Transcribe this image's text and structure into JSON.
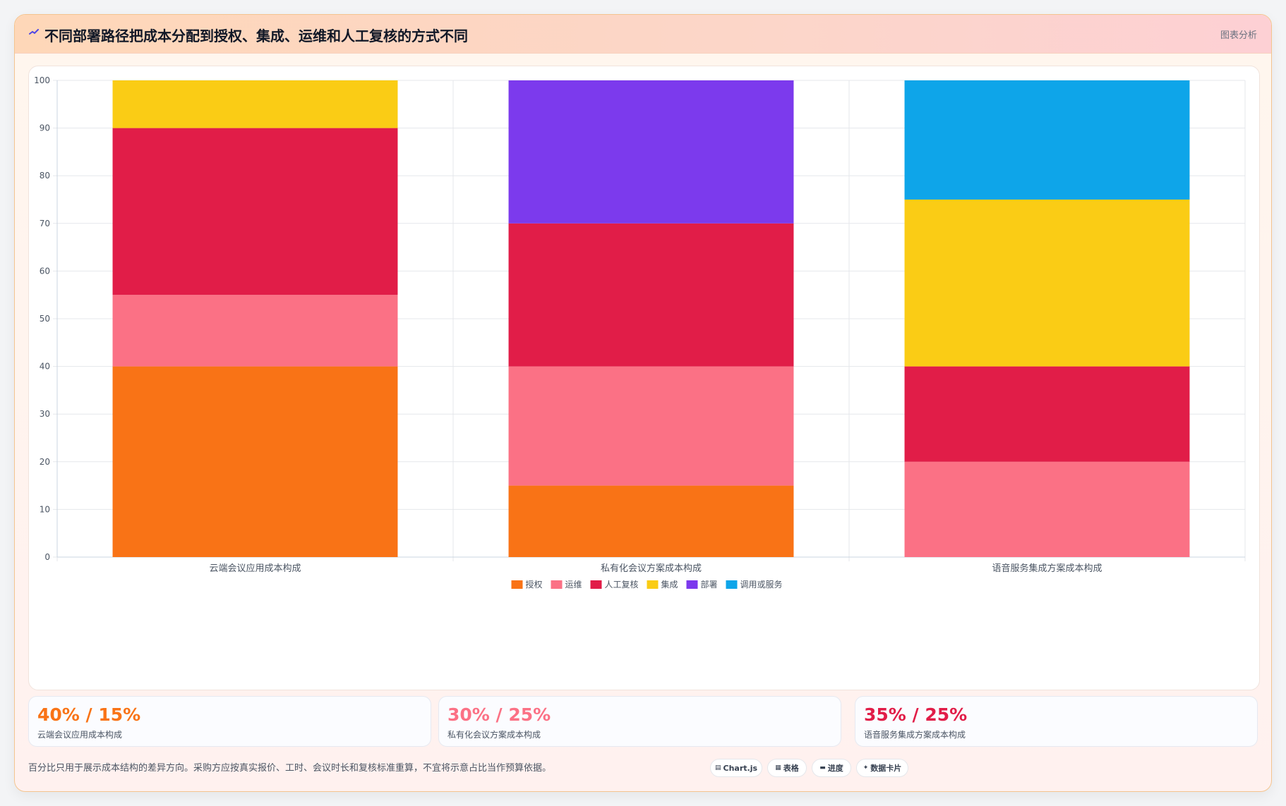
{
  "header": {
    "title": "不同部署路径把成本分配到授权、集成、运维和人工复核的方式不同",
    "action_label": "图表分析"
  },
  "chart_data": {
    "type": "bar",
    "stacked": true,
    "categories": [
      "云端会议应用成本构成",
      "私有化会议方案成本构成",
      "语音服务集成方案成本构成"
    ],
    "series": [
      {
        "name": "授权",
        "color": "#f97316",
        "values": [
          40,
          15,
          0
        ]
      },
      {
        "name": "运维",
        "color": "#fb7185",
        "values": [
          15,
          25,
          20
        ]
      },
      {
        "name": "人工复核",
        "color": "#e11d48",
        "values": [
          35,
          30,
          20
        ]
      },
      {
        "name": "集成",
        "color": "#facc15",
        "values": [
          10,
          0,
          35
        ]
      },
      {
        "name": "部署",
        "color": "#7c3aed",
        "values": [
          0,
          30,
          0
        ]
      },
      {
        "name": "调用或服务",
        "color": "#0ea5e9",
        "values": [
          0,
          0,
          25
        ]
      }
    ],
    "ylim": [
      0,
      100
    ],
    "yticks": [
      "0",
      "10",
      "20",
      "30",
      "40",
      "50",
      "60",
      "70",
      "80",
      "90",
      "100"
    ],
    "grid": true,
    "legend": "bottom"
  },
  "stats": [
    {
      "value": "40% / 15%",
      "label": "云端会议应用成本构成",
      "color": "#f97316"
    },
    {
      "value": "30% / 25%",
      "label": "私有化会议方案成本构成",
      "color": "#fb7185"
    },
    {
      "value": "35% / 25%",
      "label": "语音服务集成方案成本构成",
      "color": "#e11d48"
    }
  ],
  "footnote": "百分比只用于展示成本结构的差异方向。采购方应按真实报价、工时、会议时长和复核标准重算，不宜将示意占比当作预算依据。",
  "view_buttons": [
    {
      "label": "Chart.js",
      "icon": "▤"
    },
    {
      "label": "表格",
      "icon": "▦"
    },
    {
      "label": "进度",
      "icon": "▬"
    },
    {
      "label": "数据卡片",
      "icon": "✦"
    }
  ]
}
